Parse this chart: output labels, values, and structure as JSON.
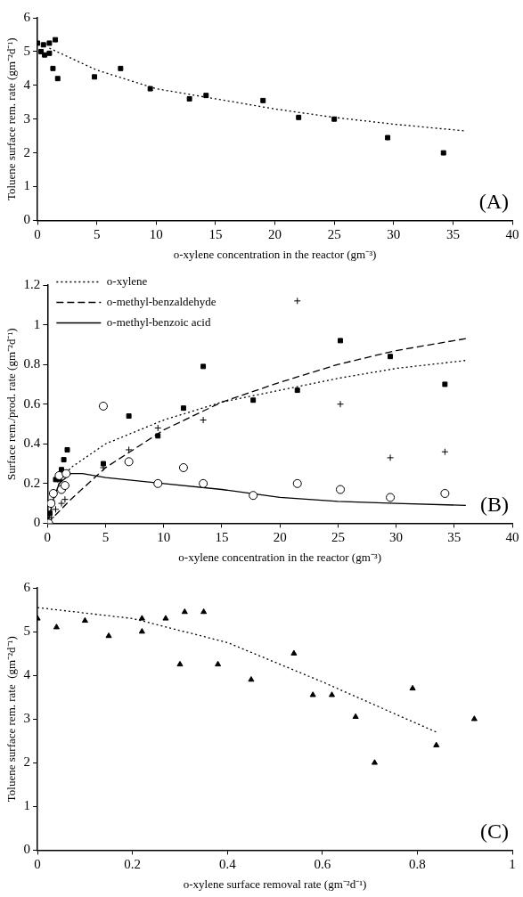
{
  "chart_data": [
    {
      "type": "scatter",
      "xlabel": "o-xylene concentration in the reactor (gm⁻³)",
      "ylabel": "Toluene surface rem. rate (gm⁻²d⁻¹)",
      "xlim": [
        0,
        40
      ],
      "xticks": [
        0,
        5,
        10,
        15,
        20,
        25,
        30,
        35,
        40
      ],
      "ylim": [
        0,
        6
      ],
      "yticks": [
        0,
        1,
        2,
        3,
        4,
        5,
        6
      ],
      "grid": false,
      "legend": false,
      "annotations": [
        "(A)"
      ],
      "series": [
        {
          "color": "#000000",
          "marker": "square",
          "x": [
            0,
            0.3,
            0.5,
            0.6,
            1.0,
            1.0,
            1.3,
            1.5,
            1.7,
            4.8,
            7,
            9.5,
            12.8,
            14.2,
            19,
            22,
            25,
            29.5,
            34.2
          ],
          "values": [
            5.25,
            5.0,
            5.2,
            4.9,
            4.95,
            5.25,
            4.5,
            5.35,
            4.2,
            4.25,
            4.5,
            3.9,
            3.6,
            3.7,
            3.55,
            3.05,
            3.0,
            2.45,
            2.0
          ]
        },
        {
          "type": "line",
          "color": "#000000",
          "marker": "none",
          "line_style": "dotted",
          "x": [
            1,
            5,
            10,
            15,
            20,
            25,
            30,
            36
          ],
          "values": [
            5.1,
            4.45,
            3.9,
            3.6,
            3.3,
            3.05,
            2.85,
            2.65
          ]
        }
      ]
    },
    {
      "type": "scatter",
      "xlabel": "o-xylene concentration in the reactor (gm⁻³)",
      "ylabel": "Surface rem./prod. rate (gm⁻²d⁻¹)",
      "xlim": [
        0,
        40
      ],
      "xticks": [
        0,
        5,
        10,
        15,
        20,
        25,
        30,
        35,
        40
      ],
      "ylim": [
        0,
        1.2
      ],
      "yticks": [
        0,
        0.2,
        0.4,
        0.6,
        0.8,
        1,
        1.2
      ],
      "grid": false,
      "legend": "top left",
      "annotations": [
        "(B)"
      ],
      "series": [
        {
          "color": "#000000",
          "marker": "circle",
          "x": [
            0.1,
            0.3,
            0.5,
            1.0,
            1.2,
            1.5,
            1.6,
            4.8,
            7,
            9.5,
            11.7,
            13.4,
            17.7,
            21.5,
            25.2,
            29.5,
            34.2
          ],
          "values": [
            0,
            0.1,
            0.15,
            0.24,
            0.17,
            0.19,
            0.25,
            0.59,
            0.31,
            0.2,
            0.28,
            0.2,
            0.14,
            0.2,
            0.17,
            0.13,
            0.15
          ]
        },
        {
          "color": "#000000",
          "marker": "square",
          "x": [
            0.2,
            0.5,
            0.7,
            1.0,
            1.2,
            1.4,
            1.7,
            4.8,
            7,
            9.5,
            11.7,
            13.4,
            17.7,
            21.5,
            25.2,
            29.5,
            34.2
          ],
          "values": [
            0.05,
            null,
            0.22,
            0.22,
            0.27,
            0.32,
            0.37,
            0.3,
            0.54,
            0.44,
            0.58,
            0.79,
            0.62,
            0.67,
            0.92,
            0.84,
            0.7
          ]
        },
        {
          "color": "#000000",
          "marker": "cross",
          "x": [
            0.3,
            0.7,
            1.2,
            1.5,
            4.8,
            7,
            9.5,
            13.4,
            21.5,
            25.2,
            29.5,
            34.2
          ],
          "values": [
            0.03,
            0.07,
            0.1,
            0.12,
            0.28,
            0.37,
            0.48,
            0.52,
            1.12,
            0.6,
            0.33,
            0.36
          ]
        },
        {
          "type": "line",
          "name": "o-xylene",
          "color": "#000000",
          "marker": "none",
          "line_style": "dotted",
          "x": [
            0,
            1,
            2,
            5,
            10,
            15,
            20,
            25,
            30,
            36
          ],
          "values": [
            0,
            0.2,
            0.28,
            0.4,
            0.52,
            0.61,
            0.67,
            0.73,
            0.78,
            0.82
          ]
        },
        {
          "type": "line",
          "name": "o-methyl-benzaldehyde",
          "color": "#000000",
          "marker": "none",
          "line_style": "dashed",
          "x": [
            0,
            2,
            5,
            10,
            15,
            20,
            25,
            30,
            36
          ],
          "values": [
            0,
            0.12,
            0.28,
            0.47,
            0.61,
            0.71,
            0.8,
            0.87,
            0.93
          ]
        },
        {
          "type": "line",
          "name": "o-methyl-benzoic acid",
          "color": "#000000",
          "marker": "none",
          "line_style": "solid",
          "x": [
            0,
            0.5,
            1,
            2,
            3,
            5,
            10,
            15,
            20,
            25,
            30,
            36
          ],
          "values": [
            0,
            0.12,
            0.2,
            0.25,
            0.25,
            0.23,
            0.2,
            0.17,
            0.13,
            0.11,
            0.1,
            0.09
          ]
        }
      ]
    },
    {
      "type": "scatter",
      "xlabel": "o-xylene surface removal rate (gm⁻²d⁻¹)",
      "ylabel": "Toluene surface rem. rate  (gm⁻²d⁻¹)",
      "xlim": [
        0,
        1
      ],
      "xticks": [
        0,
        0.2,
        0.4,
        0.6,
        0.8,
        1
      ],
      "ylim": [
        0,
        6
      ],
      "yticks": [
        0,
        1,
        2,
        3,
        4,
        5,
        6
      ],
      "grid": false,
      "legend": false,
      "annotations": [
        "(C)"
      ],
      "series": [
        {
          "color": "#000000",
          "marker": "triangle",
          "x": [
            0,
            0.04,
            0.1,
            0.15,
            0.22,
            0.22,
            0.27,
            0.3,
            0.31,
            0.35,
            0.38,
            0.45,
            0.54,
            0.58,
            0.62,
            0.67,
            0.71,
            0.79,
            0.84,
            0.92
          ],
          "values": [
            5.3,
            5.1,
            5.25,
            4.9,
            5.3,
            5.0,
            5.3,
            4.25,
            5.45,
            5.45,
            4.25,
            3.9,
            4.5,
            3.55,
            3.55,
            3.05,
            2.0,
            3.7,
            2.4,
            3.0
          ]
        },
        {
          "type": "line",
          "color": "#000000",
          "marker": "none",
          "line_style": "dotted",
          "x": [
            0,
            0.2,
            0.4,
            0.6,
            0.84
          ],
          "values": [
            5.55,
            5.3,
            4.75,
            3.85,
            2.7
          ]
        }
      ]
    }
  ]
}
